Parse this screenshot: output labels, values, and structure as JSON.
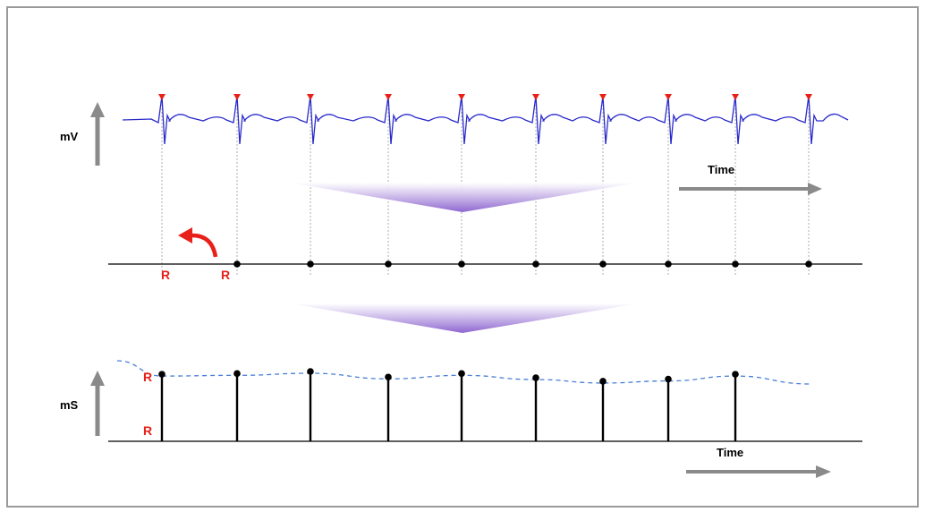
{
  "labels": {
    "voltage_axis": "mV",
    "interval_axis": "mS",
    "time_top": "Time",
    "time_bottom": "Time",
    "r_peak_first": "R",
    "r_peak_second": "R",
    "r_interval_top": "R",
    "r_interval_bottom": "R"
  },
  "colors": {
    "ecg_trace": "#2a2acc",
    "r_peak_marker": "#e8201a",
    "r_label": "#e8201a",
    "timeline": "#000000",
    "axis_arrow": "#8a8a8a",
    "funnel": "#9b79d6",
    "trend_line": "#4a7fd8"
  },
  "icons": {
    "peak_marker": "red-triangle-marker",
    "back_arrow": "curved-red-arrow-icon"
  },
  "chart_data": {
    "type": "line",
    "beat_count": 10,
    "intervals_shown": 9,
    "interval_series_relative": [
      0.96,
      0.97,
      1.0,
      0.92,
      0.97,
      0.91,
      0.86,
      0.89,
      0.96
    ],
    "trend_line": "dashed"
  }
}
